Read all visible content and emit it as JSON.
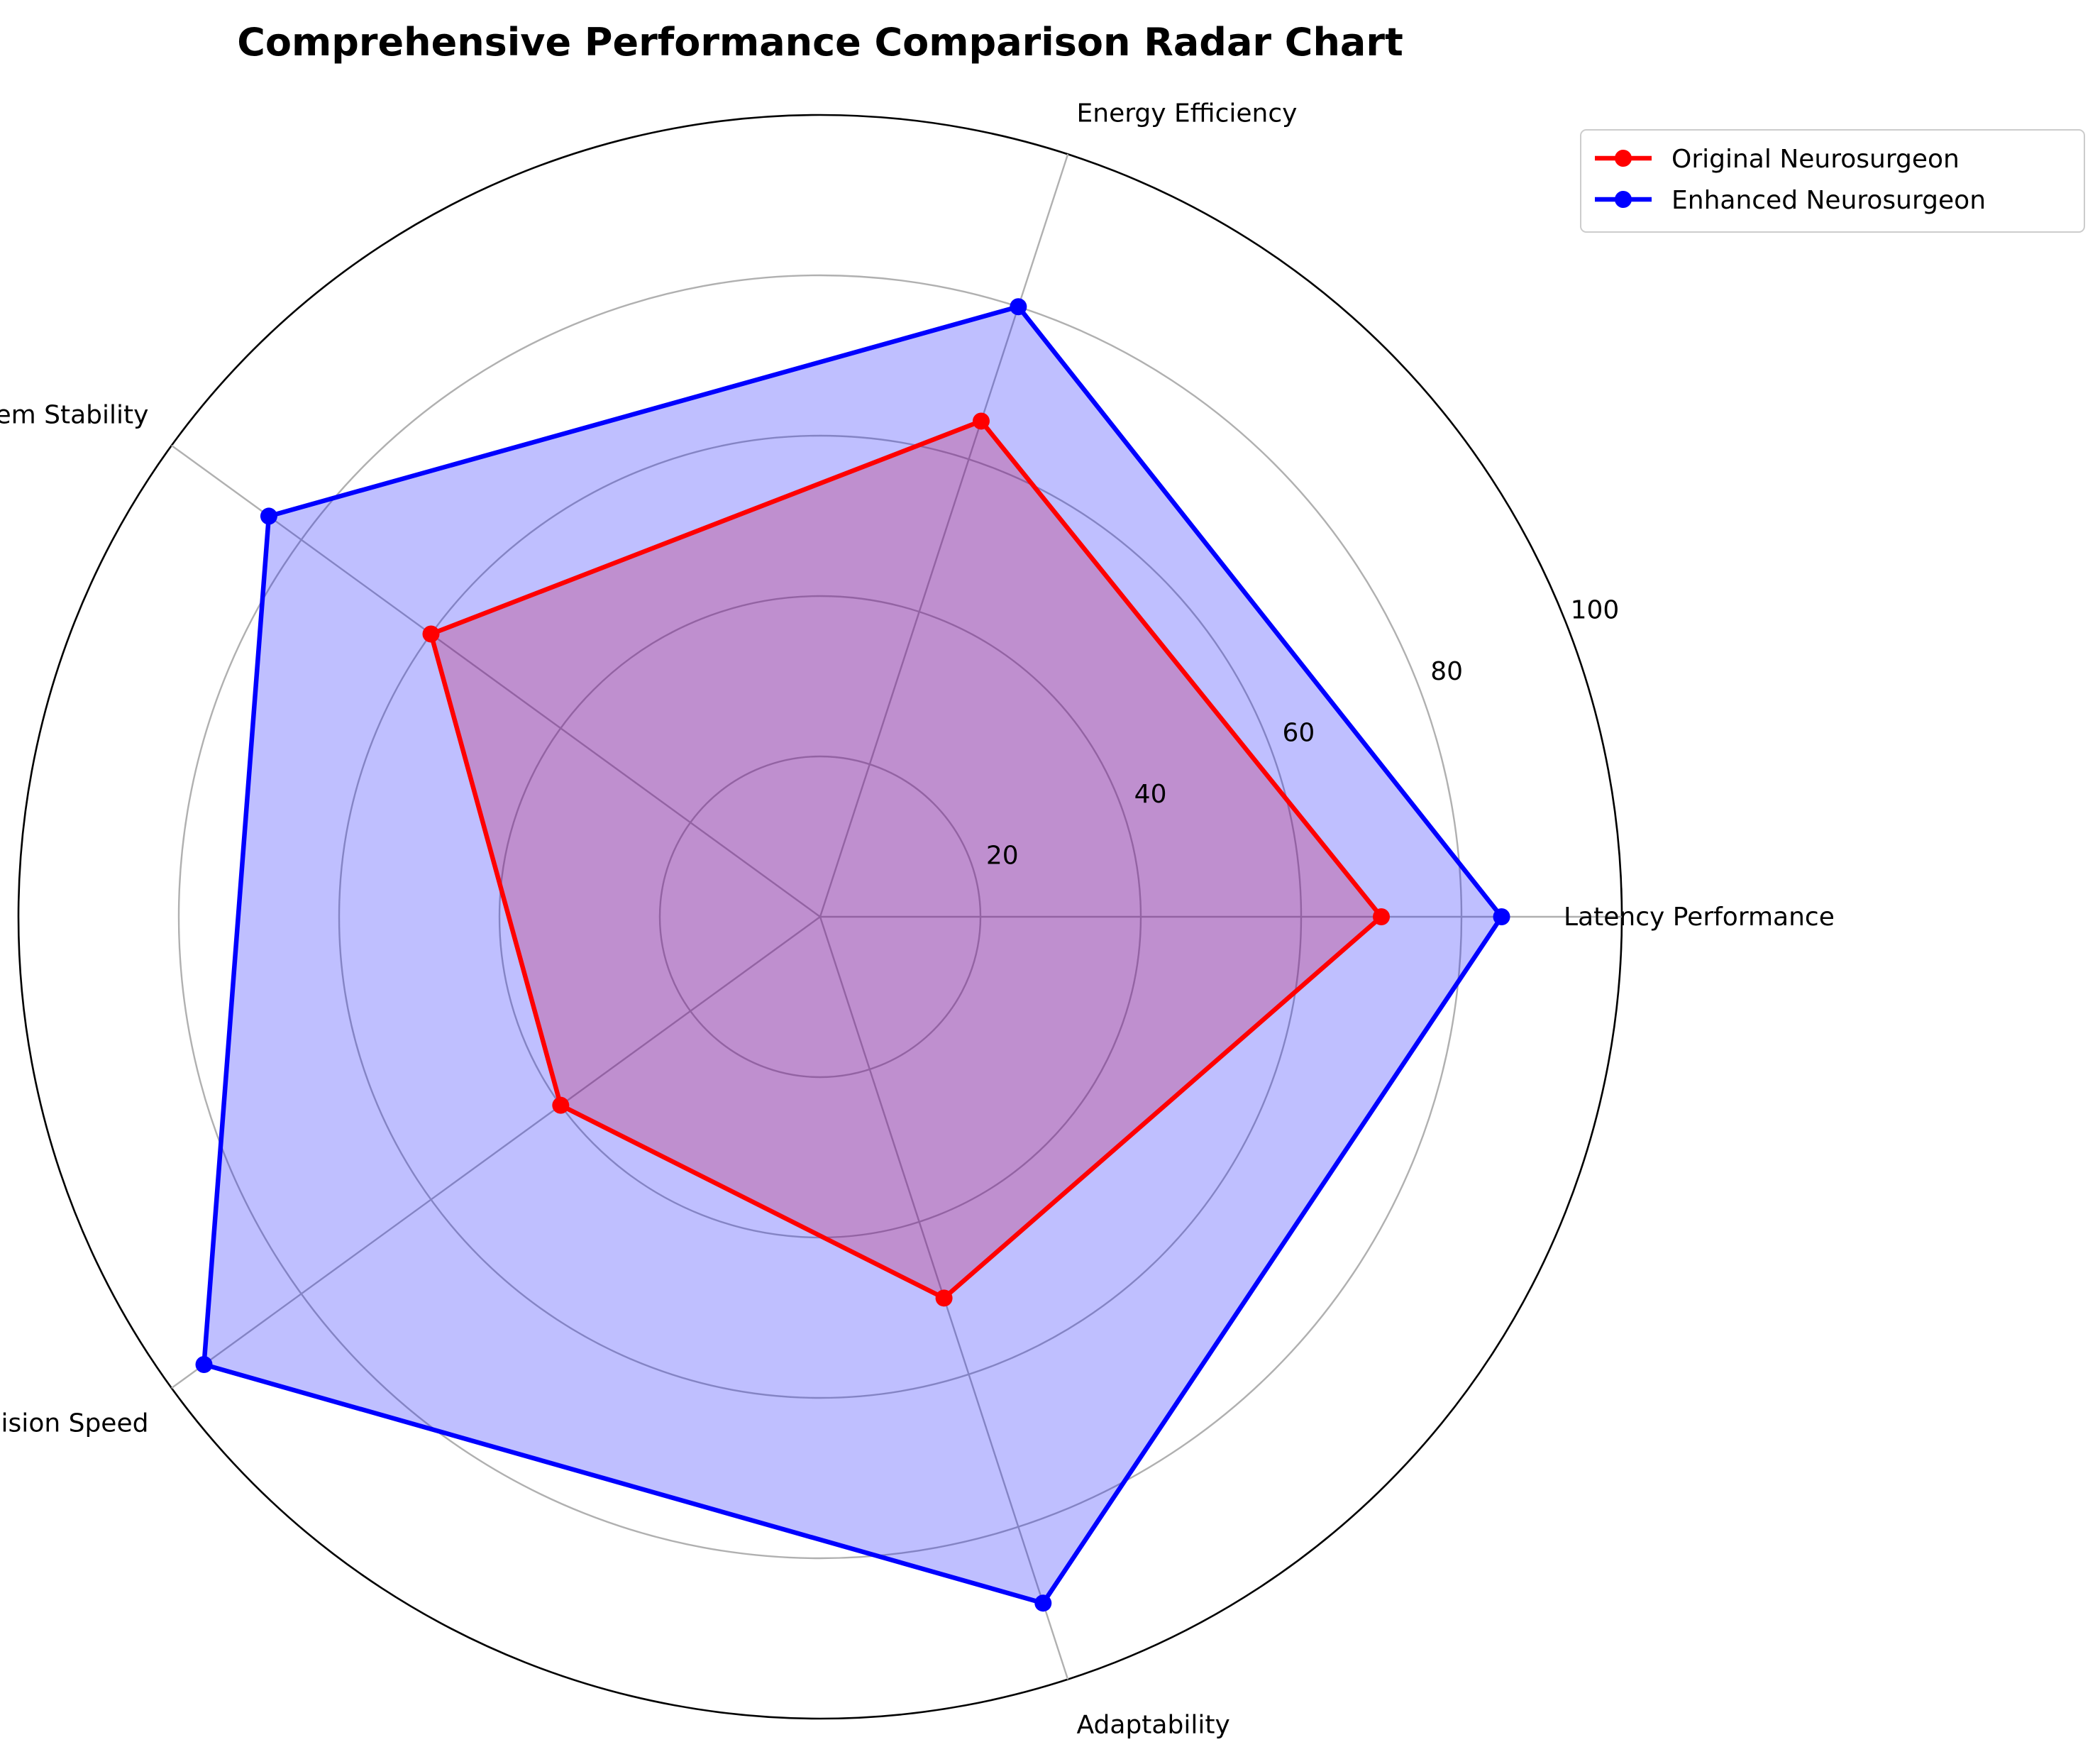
{
  "chart_data": {
    "type": "radar",
    "title": "Comprehensive Performance Comparison Radar Chart",
    "categories": [
      "Latency Performance",
      "Energy Efficiency",
      "System Stability",
      "Decision Speed",
      "Adaptability"
    ],
    "rlim": [
      0,
      100
    ],
    "rticks": [
      20,
      40,
      60,
      80,
      100
    ],
    "series": [
      {
        "name": "Original Neurosurgeon",
        "values": [
          70,
          65,
          60,
          40,
          50
        ],
        "color": "#ff0000",
        "fill": "#ff0000"
      },
      {
        "name": "Enhanced Neurosurgeon",
        "values": [
          85,
          80,
          85,
          95,
          90
        ],
        "color": "#0000ff",
        "fill": "#0000ff"
      }
    ],
    "legend_position": "top-right",
    "grid": true
  }
}
